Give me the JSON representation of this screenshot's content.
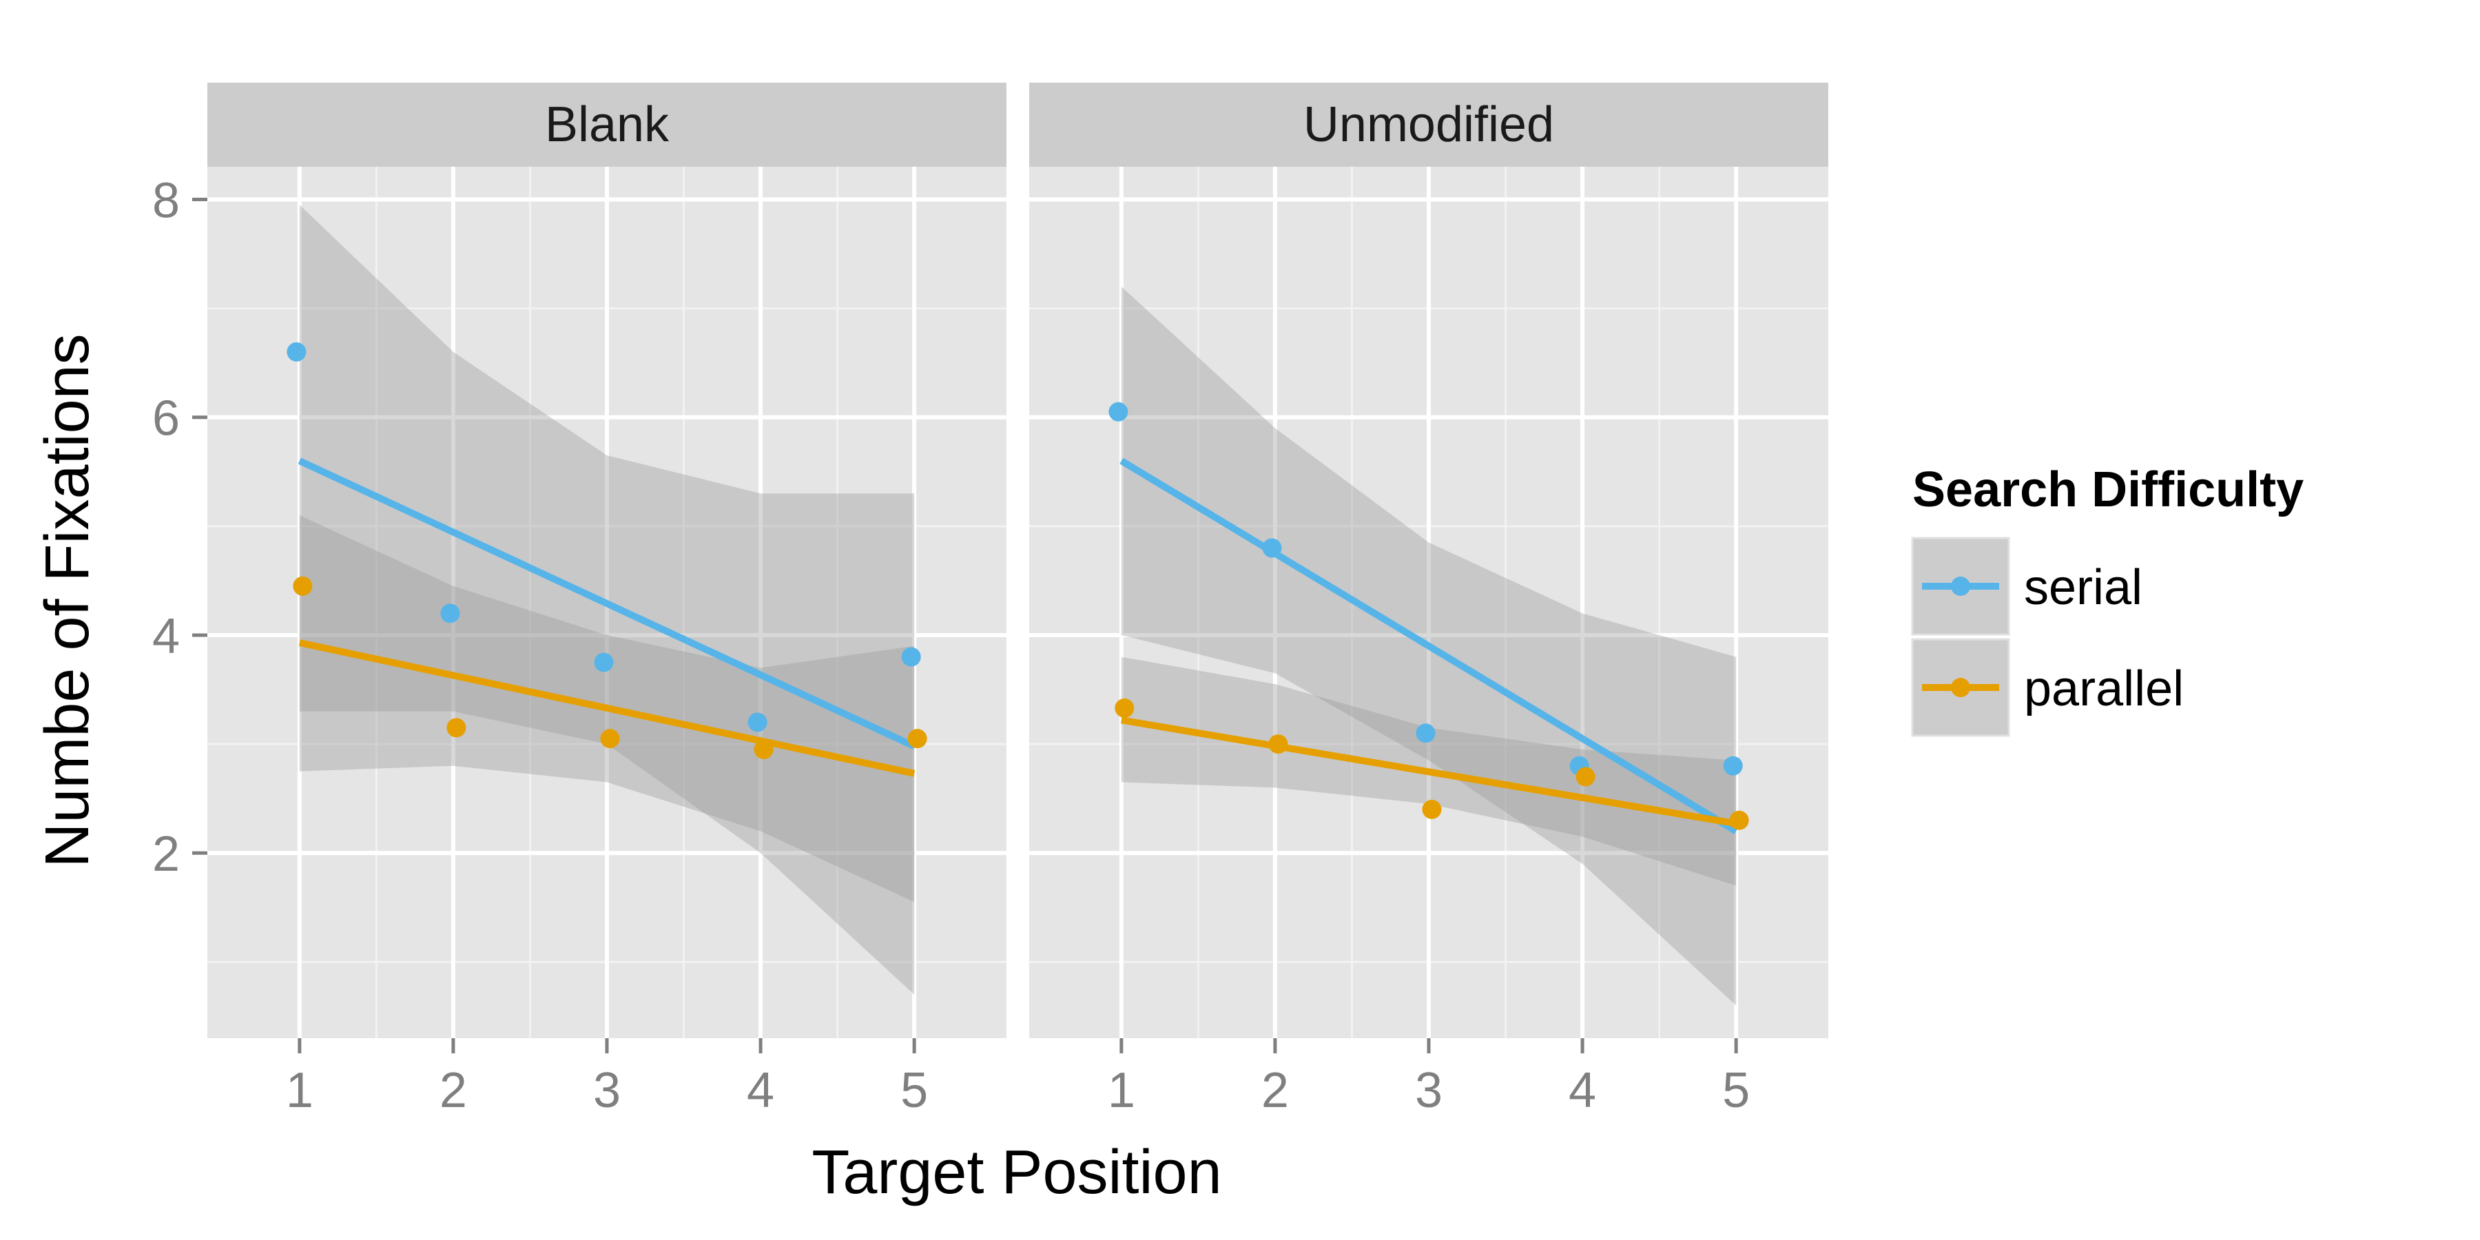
{
  "chart_data": {
    "type": "scatter",
    "xlabel": "Target Position",
    "ylabel": "Numbe of Fixations",
    "x_ticks": [
      1,
      2,
      3,
      4,
      5
    ],
    "y_ticks": [
      2,
      4,
      6,
      8
    ],
    "xlim": [
      0.4,
      5.6
    ],
    "ylim": [
      0.3,
      8.3
    ],
    "grid": true,
    "legend": {
      "title": "Search Difficulty",
      "position": "right",
      "entries": [
        {
          "key": "serial",
          "label": "serial",
          "color": "#56B4E9"
        },
        {
          "key": "parallel",
          "label": "parallel",
          "color": "#E69F00"
        }
      ]
    },
    "panels": [
      {
        "label": "Blank",
        "series": [
          {
            "key": "serial",
            "color": "#56B4E9",
            "points": [
              [
                0.98,
                6.6
              ],
              [
                1.98,
                4.2
              ],
              [
                2.98,
                3.75
              ],
              [
                3.98,
                3.2
              ],
              [
                4.98,
                3.8
              ]
            ],
            "fit": {
              "x": [
                1,
                5
              ],
              "y": [
                5.6,
                2.98
              ]
            },
            "band": {
              "x": [
                1,
                2,
                3,
                4,
                5
              ],
              "lower": [
                3.3,
                3.3,
                3.0,
                2.0,
                0.7
              ],
              "upper": [
                7.95,
                6.6,
                5.65,
                5.3,
                5.3
              ]
            }
          },
          {
            "key": "parallel",
            "color": "#E69F00",
            "points": [
              [
                1.02,
                4.45
              ],
              [
                2.02,
                3.15
              ],
              [
                3.02,
                3.05
              ],
              [
                4.02,
                2.95
              ],
              [
                5.02,
                3.05
              ]
            ],
            "fit": {
              "x": [
                1,
                5
              ],
              "y": [
                3.93,
                2.73
              ]
            },
            "band": {
              "x": [
                1,
                2,
                3,
                4,
                5
              ],
              "lower": [
                2.75,
                2.8,
                2.65,
                2.2,
                1.55
              ],
              "upper": [
                5.1,
                4.45,
                4.0,
                3.7,
                3.9
              ]
            }
          }
        ]
      },
      {
        "label": "Unmodified",
        "series": [
          {
            "key": "serial",
            "color": "#56B4E9",
            "points": [
              [
                0.98,
                6.05
              ],
              [
                1.98,
                4.8
              ],
              [
                2.98,
                3.1
              ],
              [
                3.98,
                2.8
              ],
              [
                4.98,
                2.8
              ]
            ],
            "fit": {
              "x": [
                1,
                5
              ],
              "y": [
                5.6,
                2.2
              ]
            },
            "band": {
              "x": [
                1,
                2,
                3,
                4,
                5
              ],
              "lower": [
                4.0,
                3.65,
                2.85,
                1.9,
                0.6
              ],
              "upper": [
                7.2,
                5.9,
                4.85,
                4.2,
                3.8
              ]
            }
          },
          {
            "key": "parallel",
            "color": "#E69F00",
            "points": [
              [
                1.02,
                3.33
              ],
              [
                2.02,
                3.0
              ],
              [
                3.02,
                2.4
              ],
              [
                4.02,
                2.7
              ],
              [
                5.02,
                2.3
              ]
            ],
            "fit": {
              "x": [
                1,
                5
              ],
              "y": [
                3.22,
                2.27
              ]
            },
            "band": {
              "x": [
                1,
                2,
                3,
                4,
                5
              ],
              "lower": [
                2.65,
                2.6,
                2.45,
                2.15,
                1.7
              ],
              "upper": [
                3.8,
                3.55,
                3.15,
                2.95,
                2.85
              ]
            }
          }
        ]
      }
    ]
  }
}
